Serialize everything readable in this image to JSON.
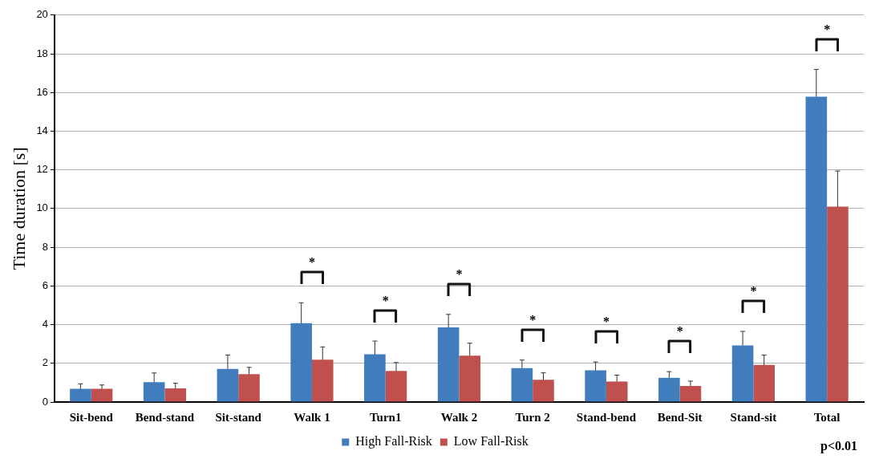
{
  "chart_data": {
    "type": "bar",
    "ylabel": "Time duration [s]",
    "categories": [
      "Sit-bend",
      "Bend-stand",
      "Sit-stand",
      "Walk 1",
      "Turn1",
      "Walk 2",
      "Turn 2",
      "Stand-bend",
      "Bend-Sit",
      "Stand-sit",
      "Total"
    ],
    "series": [
      {
        "name": "High Fall-Risk",
        "color": "#417dbd",
        "values": [
          0.68,
          1.03,
          1.71,
          4.08,
          2.47,
          3.86,
          1.75,
          1.64,
          1.25,
          2.92,
          15.78
        ],
        "errors": [
          0.26,
          0.47,
          0.72,
          1.05,
          0.68,
          0.67,
          0.42,
          0.43,
          0.32,
          0.73,
          1.41
        ]
      },
      {
        "name": "Low Fall-Risk",
        "color": "#c0504d",
        "values": [
          0.68,
          0.71,
          1.44,
          2.19,
          1.61,
          2.4,
          1.15,
          1.06,
          0.83,
          1.92,
          10.1
        ],
        "errors": [
          0.2,
          0.26,
          0.35,
          0.66,
          0.43,
          0.64,
          0.36,
          0.33,
          0.25,
          0.51,
          1.84
        ]
      }
    ],
    "ylim": [
      0,
      20
    ],
    "yticks": [
      0,
      2,
      4,
      6,
      8,
      10,
      12,
      14,
      16,
      18,
      20
    ],
    "grid": "y",
    "legend": "bottom",
    "annotations": [
      "*",
      "*",
      "*",
      "*",
      "*",
      "*",
      "*",
      "*",
      "p<0.01"
    ]
  }
}
